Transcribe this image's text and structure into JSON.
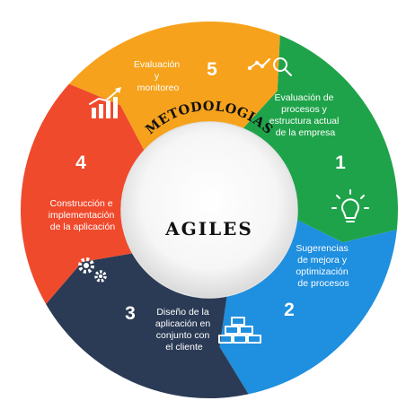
{
  "center": {
    "arc_title": "METODOLOGIAS",
    "title": "AGILES"
  },
  "segments": [
    {
      "number": "1",
      "lines": [
        "Evaluación de",
        "procesos y",
        "estructura actual",
        "de la empresa"
      ],
      "color": "#1fa34a",
      "icon": "chart-magnifier-icon"
    },
    {
      "number": "2",
      "lines": [
        "Sugerencias",
        "de mejora y",
        "optimización",
        "de procesos"
      ],
      "color": "#1f8fdf",
      "icon": "lightbulb-icon"
    },
    {
      "number": "3",
      "lines": [
        "Diseño de la",
        "aplicación en",
        "conjunto con",
        "el cliente"
      ],
      "color": "#2b3b55",
      "icon": "bricks-icon"
    },
    {
      "number": "4",
      "lines": [
        "Construcción e",
        "implementación",
        "de la aplicación"
      ],
      "color": "#ef4a2c",
      "icon": "gears-icon"
    },
    {
      "number": "5",
      "lines": [
        "Evaluación",
        "y",
        "monitoreo"
      ],
      "color": "#f6a21c",
      "icon": "bar-chart-icon"
    }
  ]
}
